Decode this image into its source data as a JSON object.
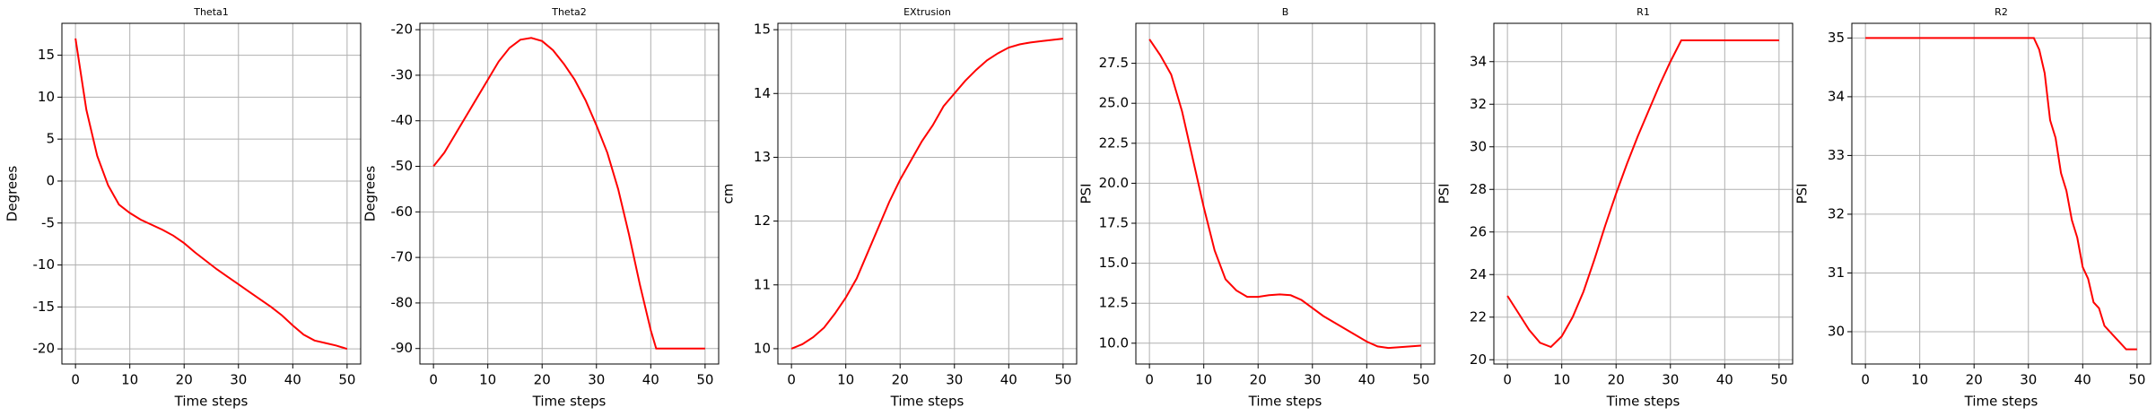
{
  "chart_data": [
    {
      "type": "line",
      "title": "Theta1",
      "x_label": "Time steps",
      "y_label": "Degrees",
      "color": "#ff0000",
      "grid": true,
      "x": [
        0,
        2,
        4,
        6,
        8,
        10,
        12,
        14,
        16,
        18,
        20,
        22,
        24,
        26,
        28,
        30,
        32,
        34,
        36,
        38,
        40,
        42,
        44,
        46,
        48,
        50
      ],
      "values": [
        17,
        8.5,
        3,
        -0.5,
        -2.8,
        -3.8,
        -4.6,
        -5.2,
        -5.8,
        -6.5,
        -7.4,
        -8.5,
        -9.5,
        -10.5,
        -11.4,
        -12.3,
        -13.2,
        -14.1,
        -15,
        -16,
        -17.2,
        -18.3,
        -19,
        -19.3,
        -19.6,
        -20
      ],
      "xlim": [
        -2.5,
        52.5
      ],
      "xticks": [
        0,
        10,
        20,
        30,
        40,
        50
      ],
      "ylim": [
        -21.8,
        18.8
      ],
      "yticks": [
        -20,
        -15,
        -10,
        -5,
        0,
        5,
        10,
        15
      ]
    },
    {
      "type": "line",
      "title": "Theta2",
      "x_label": "Time steps",
      "y_label": "Degrees",
      "color": "#ff0000",
      "grid": true,
      "x": [
        0,
        2,
        4,
        6,
        8,
        10,
        12,
        14,
        16,
        18,
        20,
        22,
        24,
        26,
        28,
        30,
        32,
        34,
        36,
        38,
        40,
        41,
        44,
        47,
        50
      ],
      "values": [
        -50,
        -47,
        -43,
        -39,
        -35,
        -31,
        -27,
        -24,
        -22.2,
        -21.8,
        -22.5,
        -24.5,
        -27.5,
        -31,
        -35.5,
        -41,
        -47,
        -55,
        -65,
        -76,
        -86,
        -90,
        -90,
        -90,
        -90
      ],
      "xlim": [
        -2.5,
        52.5
      ],
      "xticks": [
        0,
        10,
        20,
        30,
        40,
        50
      ],
      "ylim": [
        -93.4,
        -18.6
      ],
      "yticks": [
        -90,
        -80,
        -70,
        -60,
        -50,
        -40,
        -30,
        -20
      ]
    },
    {
      "type": "line",
      "title": "EXtrusion",
      "x_label": "Time steps",
      "y_label": "cm",
      "color": "#ff0000",
      "grid": true,
      "x": [
        0,
        2,
        4,
        6,
        8,
        10,
        12,
        14,
        16,
        18,
        20,
        22,
        24,
        26,
        28,
        30,
        32,
        34,
        36,
        38,
        40,
        42,
        44,
        46,
        48,
        50
      ],
      "values": [
        10,
        10.07,
        10.18,
        10.33,
        10.55,
        10.8,
        11.1,
        11.5,
        11.9,
        12.3,
        12.65,
        12.95,
        13.25,
        13.5,
        13.8,
        14,
        14.2,
        14.37,
        14.52,
        14.63,
        14.72,
        14.77,
        14.8,
        14.82,
        14.84,
        14.86
      ],
      "xlim": [
        -2.5,
        52.5
      ],
      "xticks": [
        0,
        10,
        20,
        30,
        40,
        50
      ],
      "ylim": [
        9.76,
        15.1
      ],
      "yticks": [
        10,
        11,
        12,
        13,
        14,
        15
      ]
    },
    {
      "type": "line",
      "title": "B",
      "x_label": "Time steps",
      "y_label": "PSI",
      "color": "#ff0000",
      "grid": true,
      "x": [
        0,
        2,
        4,
        6,
        8,
        10,
        12,
        14,
        16,
        18,
        20,
        22,
        24,
        26,
        28,
        30,
        32,
        34,
        36,
        38,
        40,
        42,
        44,
        46,
        48,
        50
      ],
      "values": [
        29,
        28,
        26.8,
        24.5,
        21.5,
        18.5,
        15.8,
        14,
        13.3,
        12.9,
        12.9,
        13,
        13.05,
        13,
        12.7,
        12.2,
        11.7,
        11.3,
        10.9,
        10.5,
        10.1,
        9.8,
        9.7,
        9.75,
        9.8,
        9.85
      ],
      "xlim": [
        -2.5,
        52.5
      ],
      "xticks": [
        0,
        10,
        20,
        30,
        40,
        50
      ],
      "ylim": [
        8.7,
        30
      ],
      "yticks": [
        {
          "value": 10,
          "label": "10.0"
        },
        12.5,
        {
          "value": 15,
          "label": "15.0"
        },
        17.5,
        {
          "value": 20,
          "label": "20.0"
        },
        22.5,
        {
          "value": 25,
          "label": "25.0"
        },
        27.5
      ]
    },
    {
      "type": "line",
      "title": "R1",
      "x_label": "Time steps",
      "y_label": "PSI",
      "color": "#ff0000",
      "grid": true,
      "x": [
        0,
        2,
        4,
        6,
        8,
        10,
        12,
        14,
        16,
        18,
        20,
        22,
        24,
        26,
        28,
        30,
        32,
        35,
        40,
        45,
        50
      ],
      "values": [
        23,
        22.2,
        21.4,
        20.8,
        20.6,
        21.1,
        22,
        23.2,
        24.7,
        26.3,
        27.8,
        29.2,
        30.5,
        31.7,
        32.9,
        34,
        35,
        35,
        35,
        35,
        35
      ],
      "xlim": [
        -2.5,
        52.5
      ],
      "xticks": [
        0,
        10,
        20,
        30,
        40,
        50
      ],
      "ylim": [
        19.8,
        35.8
      ],
      "yticks": [
        20,
        22,
        24,
        26,
        28,
        30,
        32,
        34
      ]
    },
    {
      "type": "line",
      "title": "R2",
      "x_label": "Time steps",
      "y_label": "PSI",
      "color": "#ff0000",
      "grid": true,
      "x": [
        0,
        10,
        20,
        30,
        31,
        32,
        33,
        34,
        35,
        36,
        37,
        38,
        39,
        40,
        41,
        42,
        43,
        44,
        46,
        48,
        50
      ],
      "values": [
        35,
        35,
        35,
        35,
        35,
        34.8,
        34.4,
        33.6,
        33.3,
        32.7,
        32.4,
        31.9,
        31.6,
        31.1,
        30.9,
        30.5,
        30.4,
        30.1,
        29.9,
        29.7,
        29.7
      ],
      "xlim": [
        -2.5,
        52.5
      ],
      "xticks": [
        0,
        10,
        20,
        30,
        40,
        50
      ],
      "ylim": [
        29.45,
        35.25
      ],
      "yticks": [
        30,
        31,
        32,
        33,
        34,
        35
      ]
    }
  ]
}
